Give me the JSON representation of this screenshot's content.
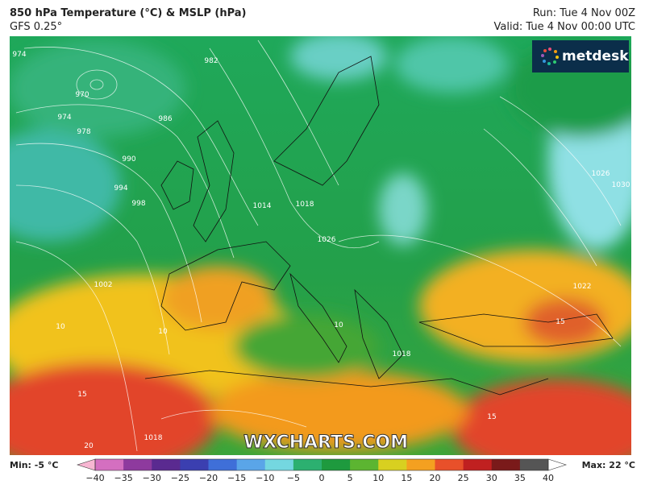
{
  "header": {
    "title": "850 hPa Temperature (°C) & MSLP (hPa)",
    "model": "GFS 0.25°",
    "run": "Run: Tue 4 Nov 00Z",
    "valid": "Valid: Tue 4 Nov 00:00 UTC"
  },
  "logo": "metdesk",
  "watermark": "WXCHARTS.COM",
  "map": {
    "labels": [
      "974",
      "982",
      "970",
      "974",
      "978",
      "986",
      "990",
      "994",
      "998",
      "1002",
      "1014",
      "1018",
      "1026",
      "1022",
      "1026",
      "1030",
      "10",
      "10",
      "10",
      "15",
      "15",
      "15",
      "20",
      "1018",
      "1018"
    ]
  },
  "legend": {
    "min": "Min: -5 °C",
    "max": "Max: 22 °C",
    "ticks": [
      "−40",
      "−35",
      "−30",
      "−25",
      "−20",
      "−15",
      "−10",
      "−5",
      "0",
      "5",
      "10",
      "15",
      "20",
      "25",
      "30",
      "35",
      "40"
    ]
  }
}
